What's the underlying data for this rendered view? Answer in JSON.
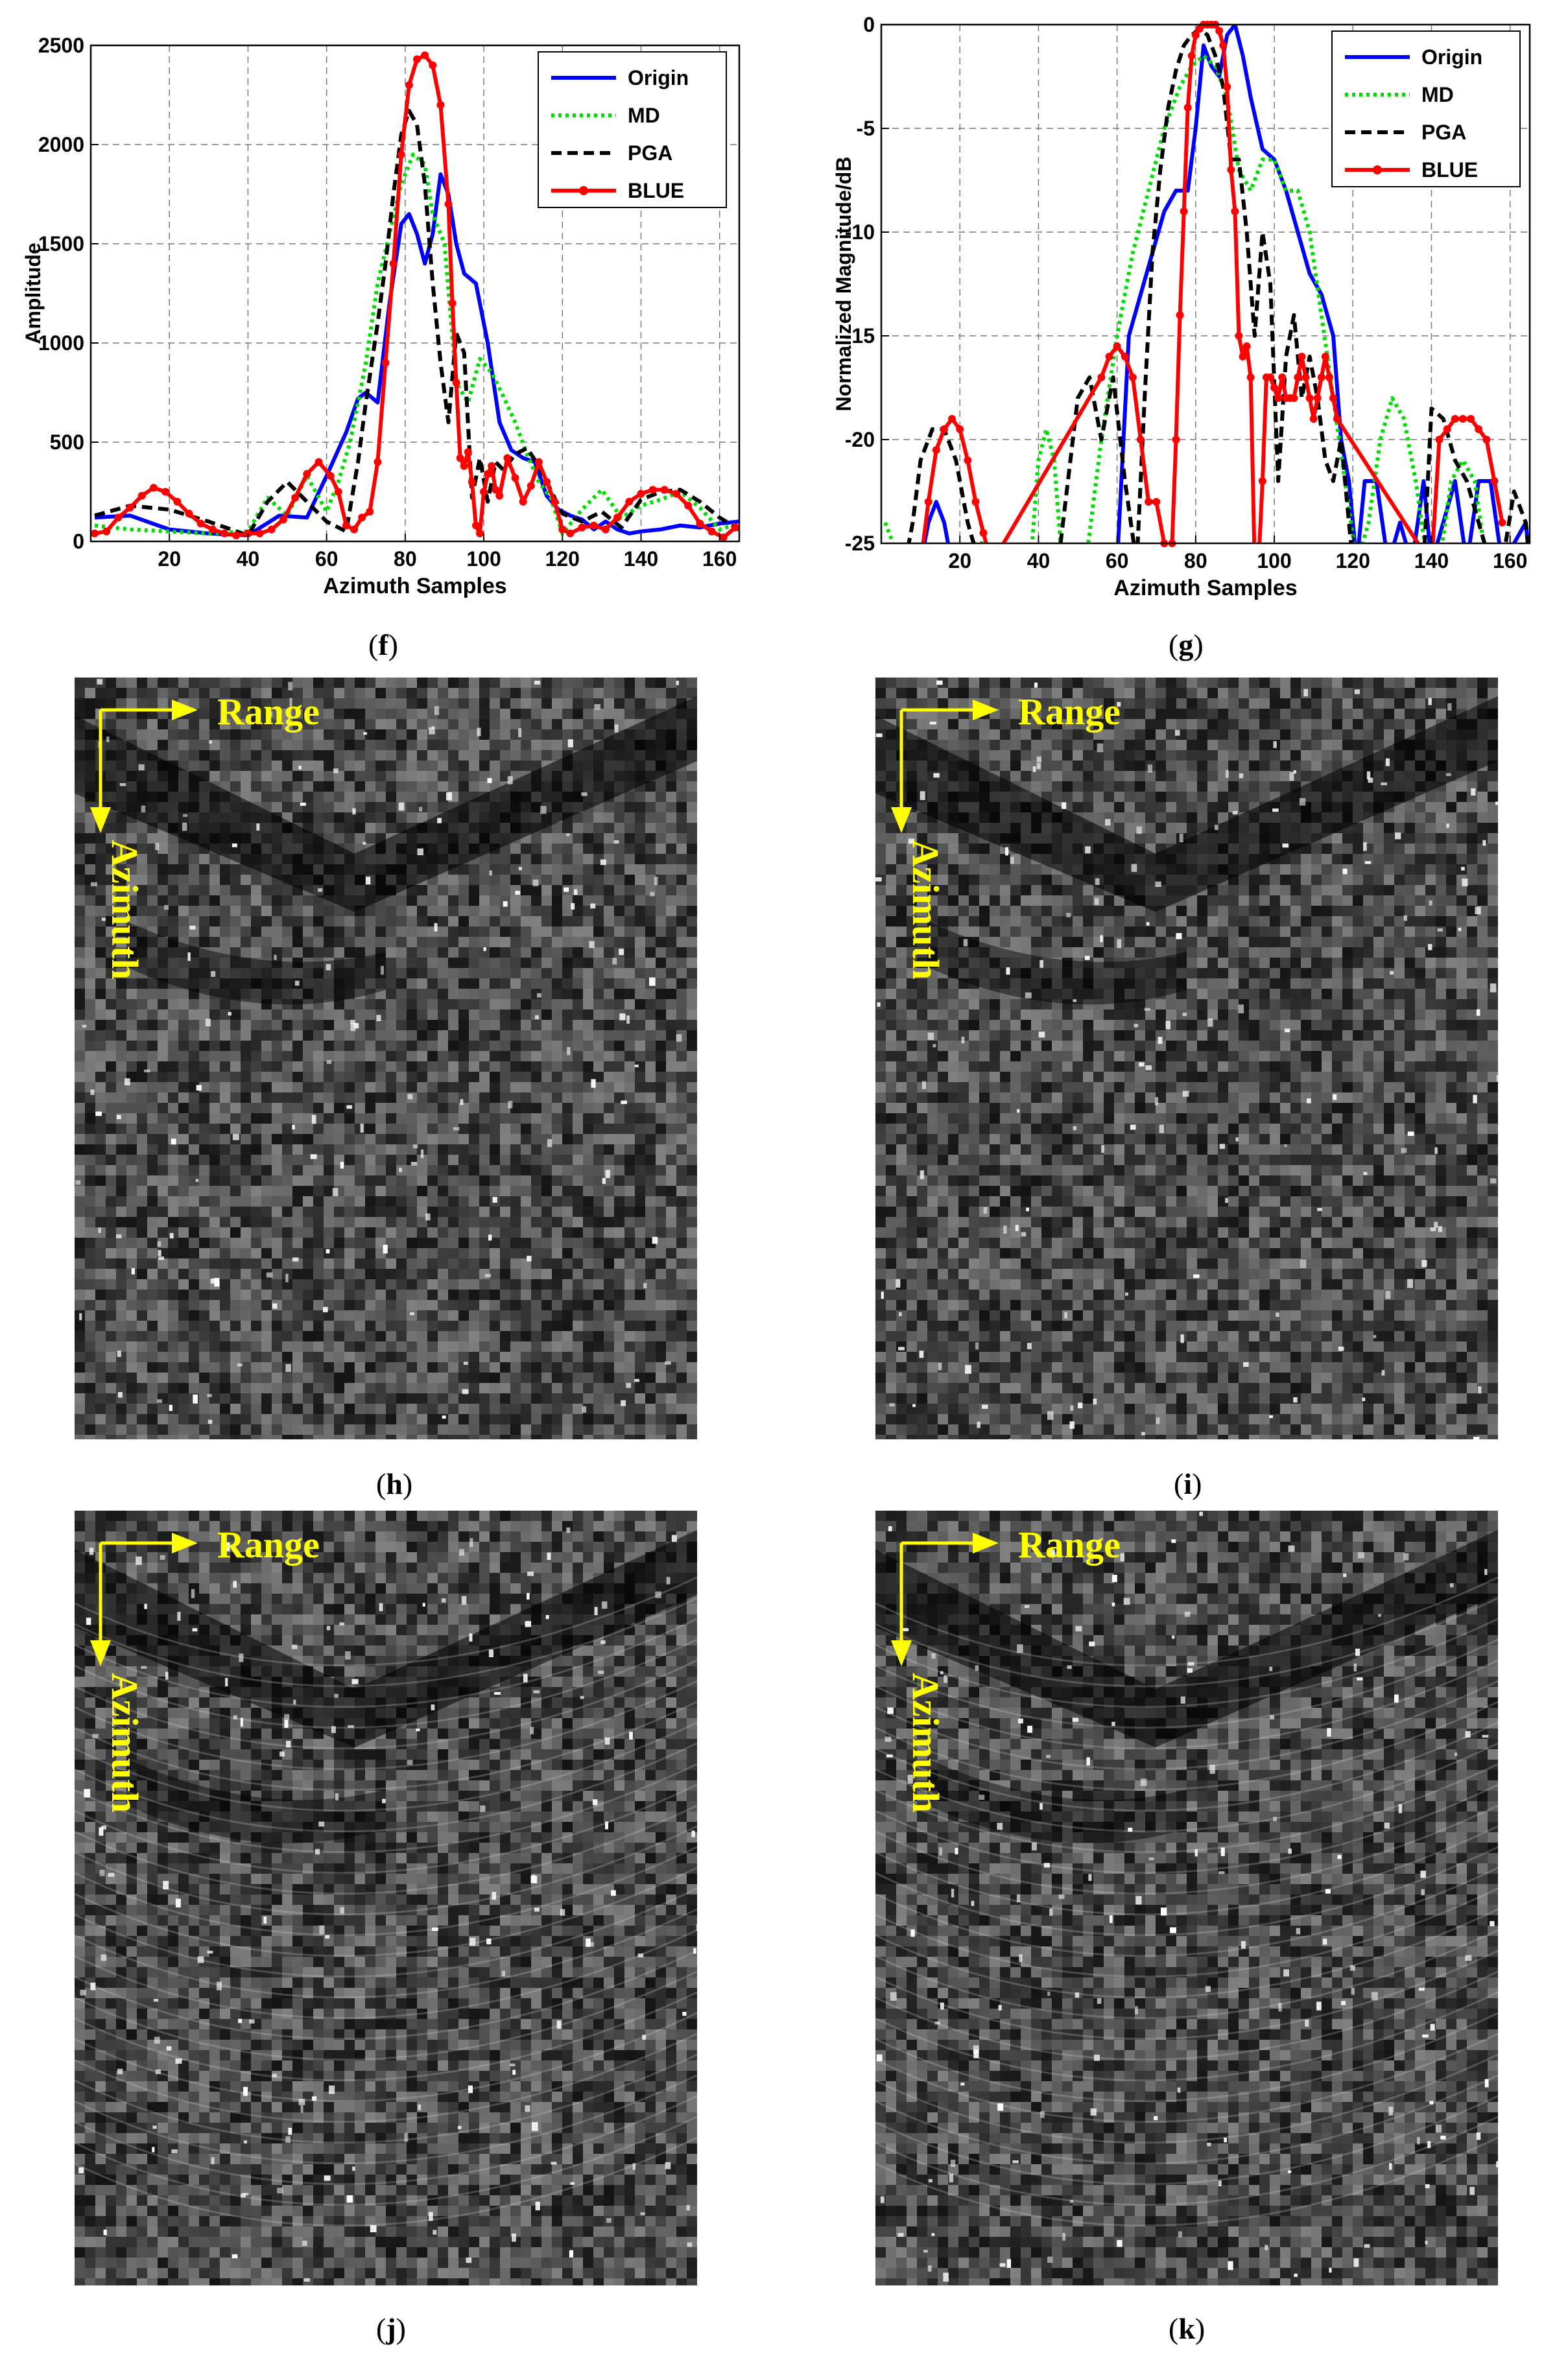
{
  "figure": {
    "panels": [
      {
        "id": "f",
        "label_open": "(",
        "label_letter": "f",
        "label_close": ")"
      },
      {
        "id": "g",
        "label_open": "(",
        "label_letter": "g",
        "label_close": ")"
      },
      {
        "id": "h",
        "label_open": "(",
        "label_letter": "h",
        "label_close": ")"
      },
      {
        "id": "i",
        "label_open": "(",
        "label_letter": "i",
        "label_close": ")"
      },
      {
        "id": "j",
        "label_open": "(",
        "label_letter": "j",
        "label_close": ")"
      },
      {
        "id": "k",
        "label_open": "(",
        "label_letter": "k",
        "label_close": ")"
      }
    ],
    "image_annotations": {
      "range_label": "Range",
      "azimuth_label": "Azimuth",
      "arrow_color": "#ffff00"
    }
  },
  "colors": {
    "origin": "#0000ff",
    "md": "#00dd00",
    "pga": "#000000",
    "blue": "#ff0000"
  },
  "chart_data": [
    {
      "type": "line",
      "xlabel": "Azimuth Samples",
      "ylabel": "Amplitude",
      "xlim": [
        0,
        165
      ],
      "ylim": [
        0,
        2500
      ],
      "xticks": [
        20,
        40,
        60,
        80,
        100,
        120,
        140,
        160
      ],
      "yticks": [
        0,
        500,
        1000,
        1500,
        2000,
        2500
      ],
      "grid": true,
      "legend_position": "top-right",
      "series": [
        {
          "name": "Origin",
          "style": "solid",
          "x": [
            1,
            10,
            20,
            30,
            40,
            48,
            55,
            60,
            65,
            68,
            70,
            73,
            76,
            79,
            81,
            83,
            85,
            87,
            89,
            91,
            93,
            95,
            98,
            101,
            104,
            107,
            110,
            113,
            116,
            119,
            122,
            125,
            128,
            131,
            134,
            137,
            140,
            145,
            150,
            155,
            160,
            165
          ],
          "y": [
            120,
            130,
            60,
            40,
            30,
            130,
            120,
            330,
            550,
            720,
            750,
            700,
            1200,
            1600,
            1650,
            1550,
            1400,
            1550,
            1850,
            1750,
            1500,
            1350,
            1300,
            1000,
            600,
            460,
            420,
            400,
            230,
            160,
            130,
            110,
            60,
            100,
            60,
            40,
            50,
            60,
            80,
            70,
            90,
            100
          ]
        },
        {
          "name": "MD",
          "style": "dotted",
          "x": [
            1,
            10,
            20,
            30,
            40,
            45,
            50,
            55,
            60,
            63,
            66,
            70,
            73,
            76,
            79,
            82,
            85,
            87,
            90,
            93,
            96,
            99,
            102,
            105,
            108,
            111,
            114,
            117,
            120,
            125,
            130,
            135,
            140,
            145,
            150,
            155,
            160,
            165
          ],
          "y": [
            80,
            60,
            50,
            40,
            50,
            220,
            130,
            330,
            150,
            300,
            500,
            900,
            1300,
            1550,
            1800,
            1950,
            1900,
            1650,
            1500,
            800,
            700,
            920,
            850,
            730,
            600,
            440,
            300,
            220,
            40,
            160,
            260,
            120,
            180,
            210,
            250,
            170,
            60,
            90
          ]
        },
        {
          "name": "PGA",
          "style": "dashed",
          "x": [
            1,
            10,
            20,
            30,
            40,
            45,
            50,
            55,
            60,
            65,
            68,
            70,
            73,
            75,
            77,
            79,
            81,
            83,
            85,
            87,
            89,
            91,
            93,
            95,
            97,
            99,
            101,
            103,
            105,
            108,
            111,
            114,
            117,
            120,
            125,
            130,
            135,
            140,
            145,
            150,
            155,
            160,
            165
          ],
          "y": [
            130,
            180,
            160,
            100,
            30,
            200,
            300,
            200,
            100,
            50,
            400,
            700,
            1100,
            1400,
            1750,
            2050,
            2170,
            2100,
            1800,
            1300,
            900,
            600,
            1050,
            950,
            220,
            420,
            200,
            400,
            360,
            440,
            470,
            380,
            260,
            140,
            100,
            150,
            70,
            210,
            250,
            260,
            200,
            120,
            60
          ]
        },
        {
          "name": "BLUE",
          "style": "solid-markers",
          "x": [
            1,
            4,
            7,
            10,
            13,
            16,
            19,
            22,
            25,
            28,
            31,
            34,
            37,
            40,
            43,
            46,
            49,
            52,
            55,
            58,
            61,
            63,
            65,
            67,
            69,
            71,
            73,
            75,
            77,
            79,
            81,
            83,
            85,
            87,
            89,
            91,
            92,
            93,
            94,
            95,
            96,
            97,
            98,
            99,
            100,
            101,
            102,
            103,
            104,
            106,
            108,
            110,
            112,
            114,
            116,
            118,
            120,
            122,
            125,
            128,
            131,
            134,
            137,
            140,
            143,
            146,
            149,
            152,
            155,
            158,
            161,
            164
          ],
          "y": [
            40,
            50,
            120,
            170,
            230,
            270,
            250,
            200,
            140,
            90,
            60,
            40,
            30,
            40,
            40,
            60,
            110,
            220,
            340,
            400,
            330,
            250,
            80,
            60,
            120,
            150,
            400,
            900,
            1400,
            1950,
            2300,
            2430,
            2450,
            2400,
            2200,
            1700,
            1200,
            800,
            420,
            380,
            450,
            300,
            80,
            40,
            250,
            340,
            380,
            260,
            230,
            420,
            320,
            200,
            280,
            400,
            300,
            200,
            60,
            40,
            70,
            80,
            60,
            120,
            200,
            240,
            260,
            260,
            240,
            180,
            90,
            50,
            20,
            70
          ]
        }
      ]
    },
    {
      "type": "line",
      "xlabel": "Azimuth Samples",
      "ylabel": "Normalized Magnitude/dB",
      "xlim": [
        0,
        165
      ],
      "ylim": [
        -25,
        0
      ],
      "xticks": [
        20,
        40,
        60,
        80,
        100,
        120,
        140,
        160
      ],
      "yticks": [
        0,
        -5,
        -10,
        -15,
        -20,
        -25
      ],
      "grid": true,
      "legend_position": "top-right",
      "series": [
        {
          "name": "Origin",
          "style": "solid",
          "x": [
            10,
            12,
            14,
            16,
            18,
            60,
            63,
            66,
            69,
            72,
            75,
            78,
            80,
            82,
            84,
            86,
            88,
            90,
            92,
            94,
            97,
            100,
            103,
            106,
            109,
            112,
            115,
            117,
            119,
            121,
            123,
            126,
            129,
            132,
            135,
            138,
            140,
            143,
            146,
            149,
            152,
            155,
            158,
            161,
            164,
            165
          ],
          "y": [
            -26,
            -24,
            -23,
            -24,
            -26,
            -26,
            -15,
            -13,
            -11,
            -9,
            -8,
            -8,
            -5,
            -1,
            -2,
            -2.5,
            -0.5,
            0,
            -1.5,
            -3.5,
            -6,
            -6.5,
            -8,
            -10,
            -12,
            -13,
            -15,
            -20,
            -22,
            -26,
            -22,
            -22,
            -26,
            -24,
            -26,
            -22,
            -26,
            -24,
            -22,
            -26,
            -22,
            -22,
            -26,
            -25,
            -24,
            -26
          ]
        },
        {
          "name": "MD",
          "style": "dotted",
          "x": [
            1,
            3,
            5,
            7,
            20,
            23,
            26,
            30,
            34,
            38,
            40,
            42,
            44,
            46,
            48,
            52,
            56,
            60,
            64,
            68,
            72,
            76,
            79,
            82,
            85,
            88,
            91,
            94,
            97,
            100,
            103,
            106,
            109,
            112,
            115,
            118,
            121,
            124,
            127,
            130,
            133,
            136,
            139,
            142,
            145,
            148,
            151,
            154,
            157,
            160,
            163,
            165
          ],
          "y": [
            -24,
            -25,
            -26,
            -26,
            -26,
            -25,
            -25,
            -26,
            -26,
            -26,
            -21,
            -19.5,
            -21,
            -26,
            -26,
            -26,
            -20,
            -15,
            -11,
            -8,
            -5,
            -3,
            -2,
            -1.5,
            -2,
            -3.5,
            -7,
            -8,
            -6.5,
            -6.5,
            -8,
            -8,
            -10,
            -14,
            -18,
            -22,
            -26,
            -24,
            -20,
            -18,
            -19,
            -22,
            -26,
            -26,
            -22,
            -21,
            -22,
            -26,
            -26,
            -25,
            -26,
            -26
          ]
        },
        {
          "name": "PGA",
          "style": "dashed",
          "x": [
            6,
            8,
            10,
            13,
            16,
            19,
            22,
            25,
            28,
            32,
            36,
            40,
            45,
            50,
            53,
            56,
            59,
            62,
            65,
            67,
            69,
            71,
            73,
            75,
            77,
            79,
            81,
            83,
            85,
            87,
            89,
            91,
            93,
            95,
            97,
            99,
            101,
            103,
            105,
            107,
            109,
            111,
            113,
            115,
            117,
            120,
            123,
            126,
            129,
            132,
            135,
            138,
            140,
            143,
            146,
            149,
            152,
            155,
            158,
            161,
            164,
            165
          ],
          "y": [
            -26,
            -24,
            -21,
            -19.5,
            -19.5,
            -21,
            -24,
            -26,
            -26,
            -26,
            -26,
            -26,
            -26,
            -18,
            -17,
            -20,
            -17,
            -22,
            -26,
            -18,
            -11,
            -7,
            -4,
            -2.2,
            -1,
            -0.5,
            -0.2,
            -0.5,
            -1.5,
            -3,
            -6.5,
            -6.5,
            -10,
            -15,
            -10,
            -12.5,
            -22,
            -16,
            -14,
            -18,
            -16,
            -18,
            -21,
            -22,
            -20,
            -26,
            -26,
            -26,
            -26,
            -26,
            -26,
            -26,
            -18.5,
            -19,
            -21,
            -22,
            -24,
            -26,
            -26,
            -22.5,
            -24,
            -26
          ]
        },
        {
          "name": "BLUE",
          "style": "solid-markers",
          "x": [
            10,
            12,
            14,
            16,
            18,
            20,
            22,
            24,
            26,
            28,
            56,
            58,
            60,
            62,
            64,
            66,
            68,
            70,
            72,
            73,
            74,
            75,
            76,
            77,
            78,
            79,
            80,
            81,
            82,
            83,
            84,
            85,
            86,
            87,
            88,
            89,
            90,
            91,
            92,
            93,
            94,
            95,
            96,
            97,
            98,
            99,
            100,
            101,
            102,
            103,
            104,
            105,
            106,
            107,
            108,
            109,
            110,
            111,
            112,
            113,
            114,
            115,
            116,
            140,
            142,
            144,
            146,
            148,
            150,
            152,
            154,
            156,
            158
          ],
          "y": [
            -26,
            -23,
            -20.5,
            -19.5,
            -19,
            -19.5,
            -21,
            -23,
            -24.5,
            -26,
            -17,
            -16,
            -15.5,
            -16,
            -17,
            -20,
            -23,
            -23,
            -25,
            -26,
            -25,
            -20,
            -14,
            -9,
            -4,
            -1.5,
            -0.5,
            -0.2,
            0,
            0,
            0,
            0,
            -0.3,
            -1,
            -3,
            -7,
            -9,
            -15,
            -16,
            -15.5,
            -17,
            -26,
            -26,
            -22,
            -17,
            -17,
            -17.5,
            -18,
            -17,
            -18,
            -18,
            -18,
            -17,
            -16,
            -17,
            -18,
            -19,
            -18,
            -17,
            -16,
            -17,
            -18,
            -19,
            -26,
            -20,
            -19.5,
            -19,
            -19,
            -19,
            -19.5,
            -20,
            -22,
            -24
          ]
        }
      ]
    }
  ]
}
